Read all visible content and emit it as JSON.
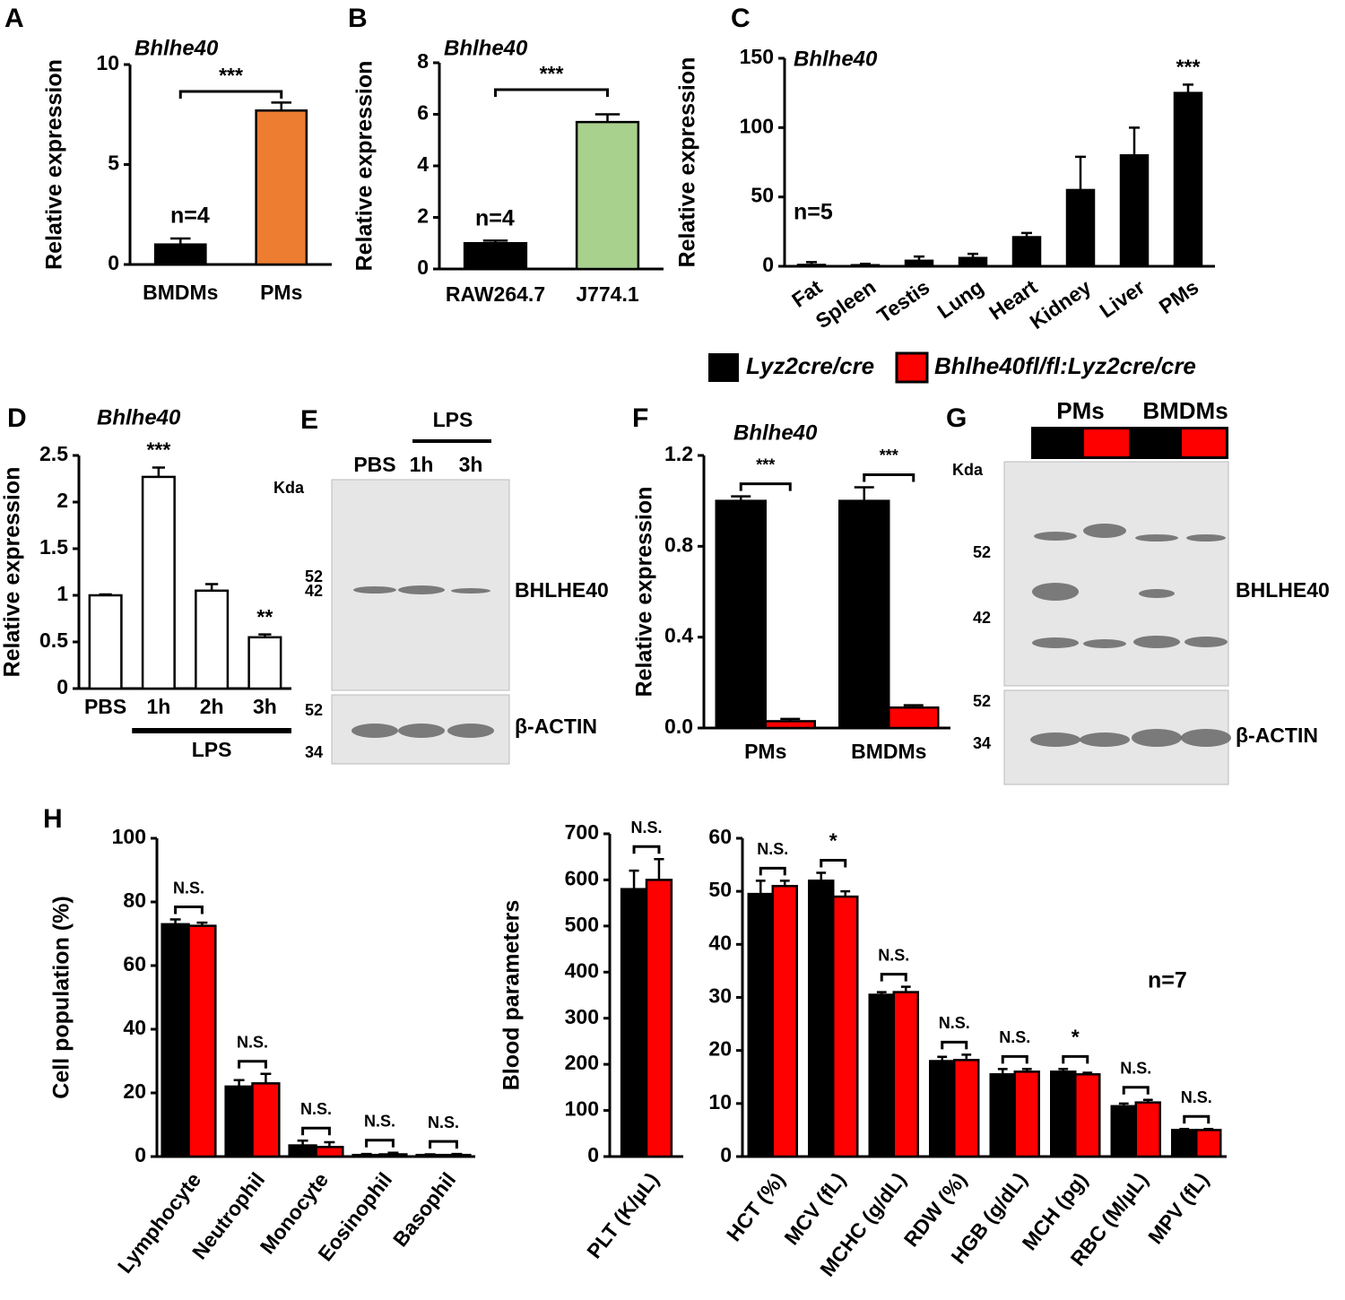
{
  "chart_data": [
    {
      "type": "bar",
      "panel": "A",
      "title": "Bhlhe40",
      "ylabel": "Relative expression",
      "categories": [
        "BMDMs",
        "PMs"
      ],
      "series": [
        {
          "colors": [
            "#000000",
            "#ED7D31"
          ],
          "values": [
            1.0,
            7.7
          ],
          "errors": [
            0.3,
            0.4
          ]
        }
      ],
      "ylim": [
        0,
        10
      ],
      "yticks": [
        0,
        5,
        10
      ],
      "bracket": "***",
      "n_label": "n=4"
    },
    {
      "type": "bar",
      "panel": "B",
      "title": "Bhlhe40",
      "ylabel": "Relative expression",
      "categories": [
        "RAW264.7",
        "J774.1"
      ],
      "series": [
        {
          "colors": [
            "#000000",
            "#A9D18E"
          ],
          "values": [
            1.0,
            5.7
          ],
          "errors": [
            0.1,
            0.3
          ]
        }
      ],
      "ylim": [
        0,
        8
      ],
      "yticks": [
        0,
        2,
        4,
        6,
        8
      ],
      "bracket": "***",
      "n_label": "n=4"
    },
    {
      "type": "bar",
      "panel": "C",
      "title": "Bhlhe40",
      "ylabel": "Relative expression",
      "categories": [
        "Fat",
        "Spleen",
        "Testis",
        "Lung",
        "Heart",
        "Kidney",
        "Liver",
        "PMs"
      ],
      "series": [
        {
          "color": "#000000",
          "values": [
            1,
            0.8,
            4,
            6,
            21,
            55,
            80,
            125
          ],
          "errors": [
            2,
            1,
            3,
            3,
            3,
            24,
            20,
            6
          ]
        }
      ],
      "ylim": [
        0,
        150
      ],
      "yticks": [
        0,
        50,
        100,
        150
      ],
      "annotations": [
        null,
        null,
        null,
        null,
        null,
        null,
        null,
        "***"
      ],
      "n_label": "n=5"
    },
    {
      "type": "bar",
      "panel": "D",
      "title": "Bhlhe40",
      "ylabel": "Relative expression",
      "categories": [
        "PBS",
        "1h",
        "2h",
        "3h"
      ],
      "series": [
        {
          "color": "#ffffff",
          "values": [
            1.0,
            2.27,
            1.05,
            0.55
          ],
          "errors": [
            0.01,
            0.1,
            0.07,
            0.03
          ]
        }
      ],
      "ylim": [
        0,
        2.5
      ],
      "yticks": [
        0,
        0.5,
        1,
        1.5,
        2,
        2.5
      ],
      "annotations": [
        null,
        "***",
        null,
        "**"
      ],
      "group_label": "LPS"
    },
    {
      "type": "bar",
      "panel": "F",
      "title": "Bhlhe40",
      "ylabel": "Relative expression",
      "categories": [
        "PMs",
        "BMDMs"
      ],
      "series": [
        {
          "name": "Lyz2cre/cre",
          "color": "#000000",
          "values": [
            1.0,
            1.0
          ],
          "errors": [
            0.02,
            0.06
          ]
        },
        {
          "name": "Bhlhe40fl/fl:Lyz2cre/cre",
          "color": "#FF0000",
          "values": [
            0.03,
            0.09
          ],
          "errors": [
            0.01,
            0.01
          ]
        }
      ],
      "ylim": [
        0,
        1.2
      ],
      "yticks": [
        {
          "value": 0,
          "label": "0.0"
        },
        0.4,
        0.8,
        1.2
      ],
      "annotations": [
        "***",
        "***"
      ]
    },
    {
      "type": "bar",
      "panel": "H",
      "ylabel": "Cell population (%)",
      "categories": [
        "Lymphocyte",
        "Neutrophil",
        "Monocyte",
        "Eosinophil",
        "Basophil"
      ],
      "series": [
        {
          "color": "#000000",
          "values": [
            73,
            22,
            3.5,
            0.5,
            0.5
          ],
          "errors": [
            1.5,
            2,
            1.5,
            0.3,
            0.2
          ]
        },
        {
          "color": "#FF0000",
          "values": [
            72.5,
            23,
            3,
            0.7,
            0.5
          ],
          "errors": [
            1,
            3,
            1.5,
            0.5,
            0.3
          ]
        }
      ],
      "ylim": [
        0,
        100
      ],
      "yticks": [
        0,
        20,
        40,
        60,
        80,
        100
      ],
      "annotations": [
        "N.S.",
        "N.S.",
        "N.S.",
        "N.S.",
        "N.S."
      ]
    },
    {
      "type": "bar",
      "ylabel": "Blood parameters",
      "categories": [
        "PLT (K/µL)"
      ],
      "series": [
        {
          "color": "#000000",
          "values": [
            580
          ],
          "errors": [
            40
          ]
        },
        {
          "color": "#FF0000",
          "values": [
            600
          ],
          "errors": [
            45
          ]
        }
      ],
      "ylim": [
        0,
        700
      ],
      "yticks": [
        0,
        100,
        200,
        300,
        400,
        500,
        600,
        700
      ],
      "annotations": [
        "N.S."
      ]
    },
    {
      "type": "bar",
      "categories": [
        "HCT (%)",
        "MCV (fL)",
        "MCHC (g/dL)",
        "RDW (%)",
        "HGB (g/dL)",
        "MCH (pg)",
        "RBC (M/µL)",
        "MPV (fL)"
      ],
      "series": [
        {
          "color": "#000000",
          "values": [
            49.5,
            52,
            30.5,
            18,
            15.5,
            16,
            9.5,
            5
          ],
          "errors": [
            2.5,
            1.5,
            0.5,
            0.8,
            1,
            0.5,
            0.5,
            0.2
          ]
        },
        {
          "color": "#FF0000",
          "values": [
            51,
            49,
            31,
            18.2,
            16,
            15.5,
            10.2,
            5
          ],
          "errors": [
            1,
            1,
            1,
            1,
            0.5,
            0.3,
            0.5,
            0.2
          ]
        }
      ],
      "ylim": [
        0,
        60
      ],
      "yticks": [
        0,
        10,
        20,
        30,
        40,
        50,
        60
      ],
      "annotations": [
        "N.S.",
        "*",
        "N.S.",
        "N.S.",
        "N.S.",
        "*",
        "N.S.",
        "N.S."
      ],
      "n_label": "n=7"
    }
  ],
  "blots": [
    {
      "panel": "E",
      "lanes": [
        "PBS",
        "1h",
        "3h"
      ],
      "treatment": "LPS",
      "kda_label": "Kda",
      "top_markers": [
        52,
        42
      ],
      "top_protein": "BHLHE40",
      "bottom_markers": [
        52,
        34
      ],
      "bottom_protein": "β-ACTIN"
    },
    {
      "panel": "G",
      "groups": [
        "PMs",
        "BMDMs"
      ],
      "kda_label": "Kda",
      "top_markers": [
        52,
        42
      ],
      "top_protein": "BHLHE40",
      "bottom_markers": [
        52,
        34
      ],
      "bottom_protein": "β-ACTIN"
    }
  ]
}
